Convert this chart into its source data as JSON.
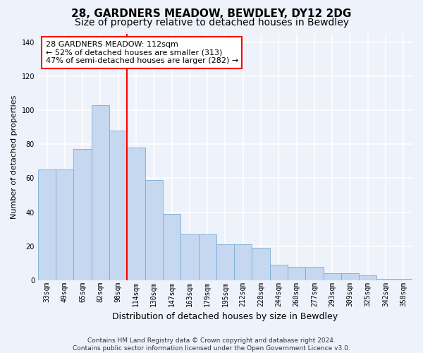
{
  "title": "28, GARDNERS MEADOW, BEWDLEY, DY12 2DG",
  "subtitle": "Size of property relative to detached houses in Bewdley",
  "xlabel": "Distribution of detached houses by size in Bewdley",
  "ylabel": "Number of detached properties",
  "categories": [
    "33sqm",
    "49sqm",
    "65sqm",
    "82sqm",
    "98sqm",
    "114sqm",
    "130sqm",
    "147sqm",
    "163sqm",
    "179sqm",
    "195sqm",
    "212sqm",
    "228sqm",
    "244sqm",
    "260sqm",
    "277sqm",
    "293sqm",
    "309sqm",
    "325sqm",
    "342sqm",
    "358sqm"
  ],
  "values": [
    65,
    65,
    77,
    103,
    88,
    78,
    59,
    39,
    27,
    27,
    21,
    21,
    19,
    9,
    8,
    8,
    4,
    4,
    3,
    1,
    1
  ],
  "bar_color": "#c5d8f0",
  "bar_edge_color": "#7aadd4",
  "vline_index": 5,
  "annotation_line0": "28 GARDNERS MEADOW: 112sqm",
  "annotation_line1": "← 52% of detached houses are smaller (313)",
  "annotation_line2": "47% of semi-detached houses are larger (282) →",
  "annotation_box_facecolor": "white",
  "annotation_box_edgecolor": "red",
  "vline_color": "red",
  "background_color": "#eef2fb",
  "grid_color": "white",
  "footer_line1": "Contains HM Land Registry data © Crown copyright and database right 2024.",
  "footer_line2": "Contains public sector information licensed under the Open Government Licence v3.0.",
  "ylim": [
    0,
    145
  ],
  "yticks": [
    0,
    20,
    40,
    60,
    80,
    100,
    120,
    140
  ],
  "title_fontsize": 11,
  "subtitle_fontsize": 10,
  "ylabel_fontsize": 8,
  "xlabel_fontsize": 9,
  "tick_fontsize": 7,
  "annot_fontsize": 8,
  "footer_fontsize": 6.5
}
